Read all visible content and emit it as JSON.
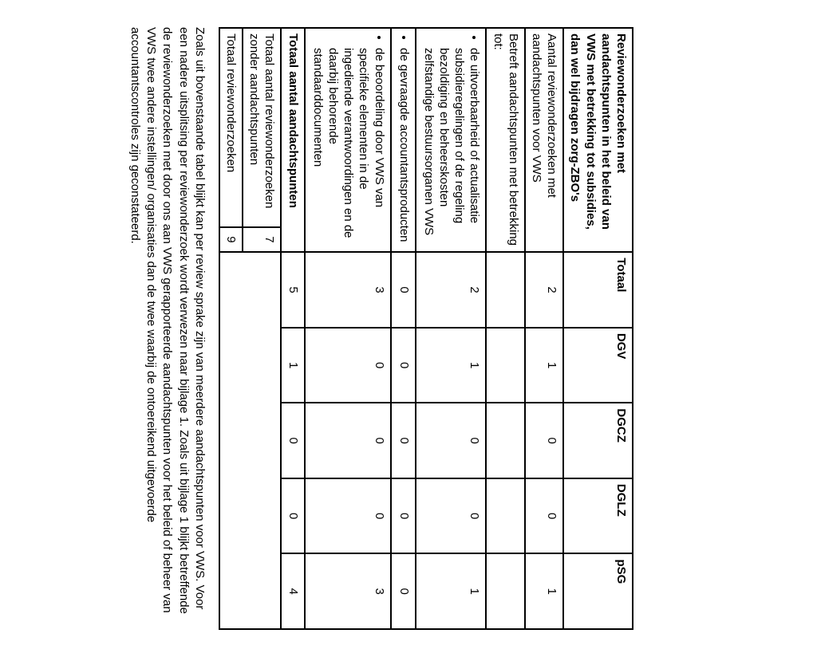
{
  "header": {
    "c0": "Reviewonderzoeken met aandachtspunten in het beleid van VWS met betrekking tot subsidies, dan wel bijdragen zorg-ZBO's",
    "cols": [
      "Totaal",
      "DGV",
      "DGCZ",
      "DGLZ",
      "pSG"
    ]
  },
  "rows": {
    "r1": {
      "label": "Aantal reviewonderzoeken met aandachtspunten voor VWS",
      "vals": [
        "2",
        "1",
        "0",
        "0",
        "1"
      ]
    },
    "r2": {
      "label": "Betreft aandachtspunten met betrekking tot:"
    },
    "r3": {
      "bullets": [
        "de uitvoerbaarheid of actualisatie subsidieregelingen of de regeling bezoldiging en beheerskosten zelfstandige bestuursorganen VWS"
      ],
      "vals": [
        "2",
        "1",
        "0",
        "0",
        "1"
      ]
    },
    "r4": {
      "bullets": [
        "de gevraagde accountantsproducten"
      ],
      "vals": [
        "0",
        "0",
        "0",
        "0",
        "0"
      ]
    },
    "r5": {
      "bullets": [
        "de beoordeling door VWS van specifieke elementen in de ingediende verantwoordingen en de daarbij behorende standaarddocumenten"
      ],
      "vals": [
        "3",
        "0",
        "0",
        "0",
        "3"
      ]
    },
    "r6": {
      "label": "Totaal aantal aandachtspunten",
      "vals": [
        "5",
        "1",
        "0",
        "0",
        "4"
      ]
    },
    "r7": {
      "label": "Totaal aantal reviewonderzoeken zonder aandachtspunten",
      "n": "7"
    },
    "r8": {
      "label": "Totaal reviewonderzoeken",
      "n": "9"
    }
  },
  "paragraph": "Zoals uit bovenstaande tabel blijkt kan per review sprake zijn van meerdere aandachtspunten voor VWS. Voor een nadere uitsplitsing per reviewonderzoek wordt verwezen naar bijlage 1. Zoals uit bijlage 1 blijkt betreffende de reviewonderzoeken met door ons aan VWS gerapporteerde aandachtspunten voor het beleid of beheer van VWS twee andere instellingen/ organisaties dan de twee waarbij de ontoereikend uitgevoerde accountantscontroles zijn geconstateerd."
}
